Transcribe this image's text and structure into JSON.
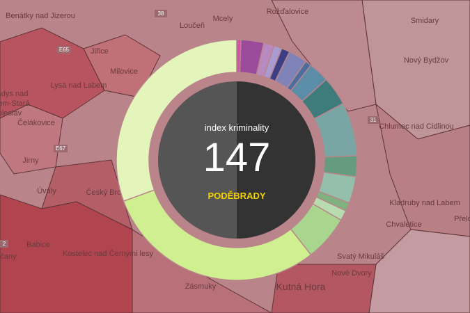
{
  "map": {
    "labels": [
      "Benátky nad Jizerou",
      "Mcely",
      "Rožďalovice",
      "Loučeň",
      "Smidary",
      "Jiřice",
      "Milovice",
      "Lysá nad Labem",
      "Nový Bydžov",
      "Čelákovice",
      "Chlumec nad Cidlinou",
      "Jirny",
      "Úvaly",
      "Český Brod",
      "Kladruby nad Labem",
      "Chvaletice",
      "Přelo",
      "Babice",
      "Kostelec nad Černými lesy",
      "Svatý Mikuláš",
      "Nové Dvory",
      "Kutná Hora",
      "Zásmuky",
      "čany",
      "ndys nad",
      "em-Stará",
      "oleslav",
      "38",
      "E65",
      "E67",
      "31",
      "2"
    ]
  },
  "chart_data": {
    "type": "donut",
    "title": "index kriminality",
    "center_value": 147,
    "subtitle": "PODĚBRADY",
    "series": [
      {
        "color": "#d44fa8",
        "values": [
          2
        ]
      },
      {
        "color": "#9a4c9a",
        "values": [
          11
        ]
      },
      {
        "color": "#b88ac0",
        "values": [
          5
        ]
      },
      {
        "color": "#a99bd0",
        "values": [
          4
        ]
      },
      {
        "color": "#3c3f86",
        "values": [
          4
        ]
      },
      {
        "color": "#7f83b8",
        "values": [
          9
        ]
      },
      {
        "color": "#4a6ea0",
        "values": [
          3
        ]
      },
      {
        "color": "#5b8ca8",
        "values": [
          10
        ]
      },
      {
        "color": "#3e7b7b",
        "values": [
          14
        ]
      },
      {
        "color": "#7aa5a5",
        "values": [
          26
        ]
      },
      {
        "color": "#659c80",
        "values": [
          10
        ]
      },
      {
        "color": "#94bfaa",
        "values": [
          13
        ]
      },
      {
        "color": "#7fb27f",
        "values": [
          4
        ]
      },
      {
        "color": "#b9dbb0",
        "values": [
          5
        ]
      },
      {
        "color": "#a9d68f",
        "values": [
          22
        ]
      },
      {
        "color": "#d0ef90",
        "values": [
          108
        ]
      },
      {
        "color": "#e4f5bc",
        "values": [
          110
        ]
      }
    ]
  }
}
